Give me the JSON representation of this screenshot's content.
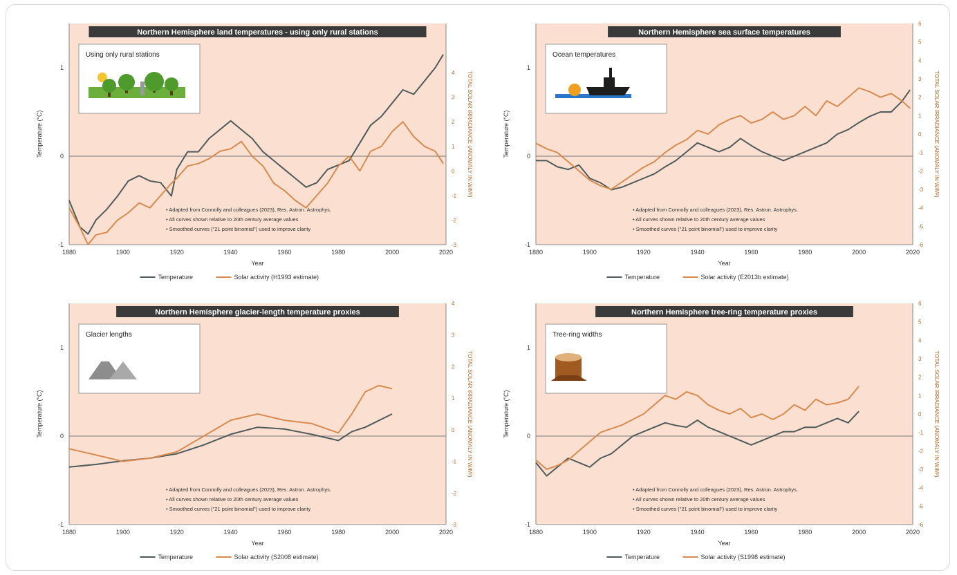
{
  "panels": [
    {
      "title": "Northern Hemisphere land temperatures - using only rural stations",
      "inset_label": "Using only rural stations",
      "inset_icon": "rural-landscape-icon",
      "notes": [
        "• Adapted from Connolly and colleagues (2023), Res. Astron. Astrophys.",
        "• All curves shown relative to 20th century average values",
        "• Smoothed curves (\"21 point binomial\") used to improve clarity"
      ],
      "legend": [
        "Temperature",
        "Solar activity (H1993 estimate)"
      ],
      "xlabel": "Year",
      "ylabel": "Temperature (°C)",
      "ylabel_right": "TOTAL SOLAR IRRADIANCE (ANOMALY IN W/M²)",
      "x_ticks": [
        "1880",
        "1900",
        "1920",
        "1940",
        "1960",
        "1980",
        "2000",
        "2020"
      ],
      "y_ticks": [
        "1",
        "0",
        "-1"
      ],
      "y2_ticks": [
        "4",
        "3",
        "2",
        "1",
        "0",
        "-1",
        "-2",
        "-3"
      ]
    },
    {
      "title": "Northern Hemisphere sea surface temperatures",
      "inset_label": "Ocean temperatures",
      "inset_icon": "ship-icon",
      "notes": [
        "• Adapted from Connolly and colleagues (2023), Res. Astron. Astrophys.",
        "• All curves shown relative to 20th century average values",
        "• Smoothed curves (\"21 point binomial\") used to improve clarity"
      ],
      "legend": [
        "Temperature",
        "Solar activity (E2013b estimate)"
      ],
      "xlabel": "Year",
      "ylabel": "Temperature (°C)",
      "ylabel_right": "TOTAL SOLAR IRRADIANCE (ANOMALY IN W/M²)",
      "x_ticks": [
        "1880",
        "1900",
        "1920",
        "1940",
        "1960",
        "1980",
        "2000",
        "2020"
      ],
      "y_ticks": [
        "1",
        "0",
        "-1"
      ],
      "y2_ticks": [
        "6",
        "5",
        "4",
        "3",
        "2",
        "1",
        "0",
        "-1",
        "-2",
        "-3",
        "-4",
        "-5",
        "-6"
      ]
    },
    {
      "title": "Northern Hemisphere glacier-length temperature proxies",
      "inset_label": "Glacier lengths",
      "inset_icon": "mountain-icon",
      "notes": [
        "• Adapted from Connolly and colleagues (2023), Res. Astron. Astrophys.",
        "• All curves shown relative to 20th century average values",
        "• Smoothed curves (\"21 point binomial\") used to improve clarity"
      ],
      "legend": [
        "Temperature",
        "Solar activity (S2008 estimate)"
      ],
      "xlabel": "Year",
      "ylabel": "Temperature (°C)",
      "ylabel_right": "TOTAL SOLAR IRRADIANCE (ANOMALY IN W/M²)",
      "x_ticks": [
        "1880",
        "1900",
        "1920",
        "1940",
        "1960",
        "1980",
        "2000",
        "2020"
      ],
      "y_ticks": [
        "1",
        "0",
        "-1"
      ],
      "y2_ticks": [
        "4",
        "3",
        "2",
        "1",
        "0",
        "-1",
        "-2",
        "-3"
      ]
    },
    {
      "title": "Northern Hemisphere tree-ring temperature proxies",
      "inset_label": "Tree-ring widths",
      "inset_icon": "tree-stump-icon",
      "notes": [
        "• Adapted from Connolly and colleagues (2023), Res. Astron. Astrophys.",
        "• All curves shown relative to 20th century average values",
        "• Smoothed curves (\"21 point binomial\") used to improve clarity"
      ],
      "legend": [
        "Temperature",
        "Solar activity (S1998 estimate)"
      ],
      "xlabel": "Year",
      "ylabel": "Temperature (°C)",
      "ylabel_right": "TOTAL SOLAR IRRADIANCE (ANOMALY IN W/M²)",
      "x_ticks": [
        "1880",
        "1900",
        "1920",
        "1940",
        "1960",
        "1980",
        "2000",
        "2020"
      ],
      "y_ticks": [
        "1",
        "0",
        "-1"
      ],
      "y2_ticks": [
        "6",
        "5",
        "4",
        "3",
        "2",
        "1",
        "0",
        "-1",
        "-2",
        "-3",
        "-4",
        "-5",
        "-6"
      ]
    }
  ],
  "colors": {
    "plot_bg": "#fbdfd0",
    "temperature": "#4f5a5a",
    "solar": "#d98a4e",
    "title_bg": "#3a3a3a",
    "right_axis": "#b8692b"
  },
  "chart_data": [
    {
      "type": "line",
      "title": "Northern Hemisphere land temperatures - using only rural stations",
      "xlabel": "Year",
      "ylabel": "Temperature (°C)",
      "xlim": [
        1880,
        2020
      ],
      "ylim": [
        -1,
        1.5
      ],
      "y2lim": [
        -3,
        6
      ],
      "series": [
        {
          "name": "Temperature",
          "axis": "left",
          "x": [
            1880,
            1884,
            1887,
            1890,
            1894,
            1898,
            1902,
            1906,
            1910,
            1914,
            1918,
            1920,
            1924,
            1928,
            1932,
            1936,
            1940,
            1944,
            1948,
            1952,
            1956,
            1960,
            1964,
            1968,
            1972,
            1976,
            1980,
            1984,
            1988,
            1992,
            1996,
            2000,
            2004,
            2008,
            2012,
            2016,
            2019
          ],
          "y": [
            -0.5,
            -0.8,
            -0.88,
            -0.72,
            -0.6,
            -0.45,
            -0.28,
            -0.22,
            -0.28,
            -0.3,
            -0.45,
            -0.15,
            0.05,
            0.05,
            0.2,
            0.3,
            0.4,
            0.3,
            0.2,
            0.05,
            -0.05,
            -0.15,
            -0.25,
            -0.35,
            -0.3,
            -0.15,
            -0.1,
            -0.05,
            0.15,
            0.35,
            0.45,
            0.6,
            0.75,
            0.7,
            0.85,
            1.0,
            1.15
          ]
        },
        {
          "name": "Solar activity (H1993 estimate)",
          "axis": "right",
          "x": [
            1880,
            1884,
            1887,
            1890,
            1894,
            1898,
            1902,
            1906,
            1910,
            1914,
            1918,
            1920,
            1924,
            1928,
            1932,
            1936,
            1940,
            1944,
            1948,
            1952,
            1956,
            1960,
            1964,
            1968,
            1972,
            1976,
            1980,
            1984,
            1988,
            1992,
            1996,
            2000,
            2004,
            2008,
            2012,
            2016,
            2019
          ],
          "y": [
            -1.5,
            -2.3,
            -3.0,
            -2.6,
            -2.5,
            -2.0,
            -1.7,
            -1.3,
            -1.5,
            -1.0,
            -0.5,
            -0.3,
            0.2,
            0.3,
            0.5,
            0.8,
            0.9,
            1.2,
            0.6,
            0.2,
            -0.5,
            -0.8,
            -1.2,
            -1.5,
            -1.0,
            -0.5,
            0.2,
            0.6,
            0.0,
            0.8,
            1.0,
            1.6,
            2.0,
            1.4,
            1.0,
            0.8,
            0.3
          ]
        }
      ]
    },
    {
      "type": "line",
      "title": "Northern Hemisphere sea surface temperatures",
      "xlabel": "Year",
      "ylabel": "Temperature (°C)",
      "xlim": [
        1880,
        2020
      ],
      "ylim": [
        -1,
        1.5
      ],
      "y2lim": [
        -6,
        6
      ],
      "series": [
        {
          "name": "Temperature",
          "axis": "left",
          "x": [
            1880,
            1884,
            1888,
            1892,
            1896,
            1900,
            1904,
            1908,
            1912,
            1916,
            1920,
            1924,
            1928,
            1932,
            1936,
            1940,
            1944,
            1948,
            1952,
            1956,
            1960,
            1964,
            1968,
            1972,
            1976,
            1980,
            1984,
            1988,
            1992,
            1996,
            2000,
            2004,
            2008,
            2012,
            2016,
            2019
          ],
          "y": [
            -0.05,
            -0.05,
            -0.12,
            -0.15,
            -0.1,
            -0.25,
            -0.3,
            -0.38,
            -0.35,
            -0.3,
            -0.25,
            -0.2,
            -0.12,
            -0.05,
            0.05,
            0.15,
            0.1,
            0.05,
            0.1,
            0.2,
            0.12,
            0.05,
            0.0,
            -0.05,
            0.0,
            0.05,
            0.1,
            0.15,
            0.25,
            0.3,
            0.38,
            0.45,
            0.5,
            0.5,
            0.62,
            0.75
          ]
        },
        {
          "name": "Solar activity (E2013b estimate)",
          "axis": "right",
          "x": [
            1880,
            1884,
            1888,
            1892,
            1896,
            1900,
            1904,
            1908,
            1912,
            1916,
            1920,
            1924,
            1928,
            1932,
            1936,
            1940,
            1944,
            1948,
            1952,
            1956,
            1960,
            1964,
            1968,
            1972,
            1976,
            1980,
            1984,
            1988,
            1992,
            1996,
            2000,
            2004,
            2008,
            2012,
            2016,
            2019
          ],
          "y": [
            -0.5,
            -0.8,
            -1.0,
            -1.5,
            -2.0,
            -2.5,
            -2.8,
            -3.0,
            -2.6,
            -2.2,
            -1.8,
            -1.5,
            -1.0,
            -0.6,
            -0.3,
            0.2,
            0.0,
            0.5,
            0.8,
            1.0,
            0.6,
            0.8,
            1.2,
            0.8,
            1.0,
            1.5,
            1.0,
            1.8,
            1.5,
            2.0,
            2.5,
            2.3,
            2.0,
            2.2,
            1.8,
            1.4
          ]
        }
      ]
    },
    {
      "type": "line",
      "title": "Northern Hemisphere glacier-length temperature proxies",
      "xlabel": "Year",
      "ylabel": "Temperature (°C)",
      "xlim": [
        1880,
        2020
      ],
      "ylim": [
        -1,
        1.5
      ],
      "y2lim": [
        -3,
        4
      ],
      "series": [
        {
          "name": "Temperature",
          "axis": "left",
          "x": [
            1880,
            1890,
            1900,
            1910,
            1920,
            1930,
            1940,
            1950,
            1960,
            1970,
            1980,
            1985,
            1990,
            2000
          ],
          "y": [
            -0.35,
            -0.32,
            -0.28,
            -0.25,
            -0.2,
            -0.1,
            0.02,
            0.1,
            0.08,
            0.02,
            -0.05,
            0.05,
            0.1,
            0.25
          ]
        },
        {
          "name": "Solar activity (S2008 estimate)",
          "axis": "right",
          "x": [
            1880,
            1890,
            1900,
            1910,
            1920,
            1930,
            1940,
            1950,
            1960,
            1970,
            1980,
            1985,
            1990,
            1995,
            2000
          ],
          "y": [
            -0.6,
            -0.8,
            -1.0,
            -0.9,
            -0.7,
            -0.2,
            0.3,
            0.5,
            0.3,
            0.2,
            -0.1,
            0.5,
            1.2,
            1.4,
            1.3
          ]
        }
      ]
    },
    {
      "type": "line",
      "title": "Northern Hemisphere tree-ring temperature proxies",
      "xlabel": "Year",
      "ylabel": "Temperature (°C)",
      "xlim": [
        1880,
        2020
      ],
      "ylim": [
        -1,
        1.5
      ],
      "y2lim": [
        -6,
        6
      ],
      "series": [
        {
          "name": "Temperature",
          "axis": "left",
          "x": [
            1880,
            1884,
            1888,
            1892,
            1896,
            1900,
            1904,
            1908,
            1912,
            1916,
            1920,
            1924,
            1928,
            1932,
            1936,
            1940,
            1944,
            1948,
            1952,
            1956,
            1960,
            1964,
            1968,
            1972,
            1976,
            1980,
            1984,
            1988,
            1992,
            1996,
            2000
          ],
          "y": [
            -0.3,
            -0.45,
            -0.35,
            -0.25,
            -0.3,
            -0.35,
            -0.25,
            -0.2,
            -0.1,
            0.0,
            0.05,
            0.1,
            0.15,
            0.12,
            0.1,
            0.18,
            0.1,
            0.05,
            0.0,
            -0.05,
            -0.1,
            -0.05,
            0.0,
            0.05,
            0.05,
            0.1,
            0.1,
            0.15,
            0.2,
            0.15,
            0.28
          ]
        },
        {
          "name": "Solar activity (S1998 estimate)",
          "axis": "right",
          "x": [
            1880,
            1884,
            1888,
            1892,
            1896,
            1900,
            1904,
            1908,
            1912,
            1916,
            1920,
            1924,
            1928,
            1932,
            1936,
            1940,
            1944,
            1948,
            1952,
            1956,
            1960,
            1964,
            1968,
            1972,
            1976,
            1980,
            1984,
            1988,
            1992,
            1996,
            2000
          ],
          "y": [
            -2.5,
            -3.0,
            -2.8,
            -2.5,
            -2.0,
            -1.5,
            -1.0,
            -0.8,
            -0.6,
            -0.3,
            0.0,
            0.5,
            1.0,
            0.8,
            1.2,
            1.0,
            0.5,
            0.2,
            0.0,
            0.3,
            -0.2,
            0.0,
            -0.3,
            0.0,
            0.5,
            0.2,
            0.8,
            0.5,
            0.6,
            0.8,
            1.5
          ]
        }
      ]
    }
  ]
}
